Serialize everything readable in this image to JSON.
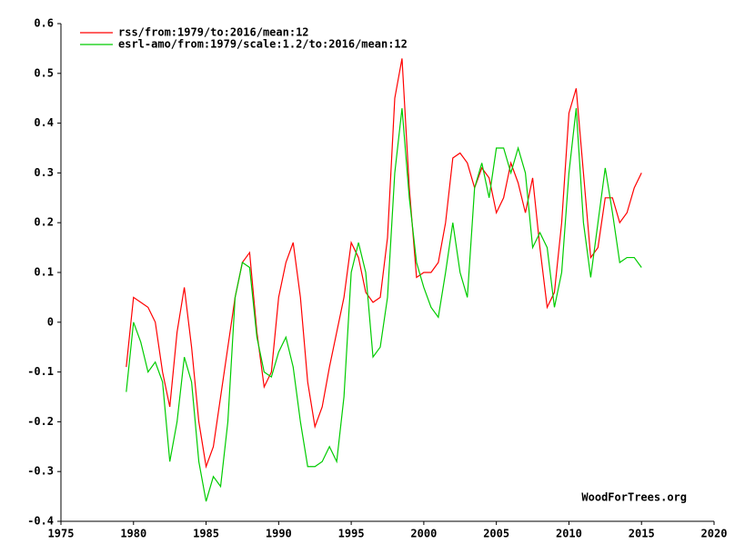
{
  "chart_data": {
    "type": "line",
    "x": [
      1979.5,
      1980,
      1980.5,
      1981,
      1981.5,
      1982,
      1982.5,
      1983,
      1983.5,
      1984,
      1984.5,
      1985,
      1985.5,
      1986,
      1986.5,
      1987,
      1987.5,
      1988,
      1988.5,
      1989,
      1989.5,
      1990,
      1990.5,
      1991,
      1991.5,
      1992,
      1992.5,
      1993,
      1993.5,
      1994,
      1994.5,
      1995,
      1995.5,
      1996,
      1996.5,
      1997,
      1997.5,
      1998,
      1998.5,
      1999,
      1999.5,
      2000,
      2000.5,
      2001,
      2001.5,
      2002,
      2002.5,
      2003,
      2003.5,
      2004,
      2004.5,
      2005,
      2005.5,
      2006,
      2006.5,
      2007,
      2007.5,
      2008,
      2008.5,
      2009,
      2009.5,
      2010,
      2010.5,
      2011,
      2011.5,
      2012,
      2012.5,
      2013,
      2013.5,
      2014,
      2014.5,
      2015
    ],
    "series": [
      {
        "name": "rss/from:1979/to:2016/mean:12",
        "color": "#ff0000",
        "values": [
          -0.09,
          0.05,
          0.04,
          0.03,
          0.0,
          -0.1,
          -0.17,
          -0.02,
          0.07,
          -0.05,
          -0.2,
          -0.29,
          -0.25,
          -0.15,
          -0.05,
          0.05,
          0.12,
          0.14,
          -0.02,
          -0.13,
          -0.1,
          0.05,
          0.12,
          0.16,
          0.05,
          -0.12,
          -0.21,
          -0.17,
          -0.09,
          -0.02,
          0.05,
          0.16,
          0.13,
          0.06,
          0.04,
          0.05,
          0.17,
          0.45,
          0.53,
          0.27,
          0.09,
          0.1,
          0.1,
          0.12,
          0.2,
          0.33,
          0.34,
          0.32,
          0.27,
          0.31,
          0.29,
          0.22,
          0.25,
          0.32,
          0.28,
          0.22,
          0.29,
          0.15,
          0.03,
          0.06,
          0.2,
          0.42,
          0.47,
          0.3,
          0.13,
          0.15,
          0.25,
          0.25,
          0.2,
          0.22,
          0.27,
          0.3
        ]
      },
      {
        "name": "esrl-amo/from:1979/scale:1.2/to:2016/mean:12",
        "color": "#00cc00",
        "values": [
          -0.14,
          0.0,
          -0.04,
          -0.1,
          -0.08,
          -0.12,
          -0.28,
          -0.2,
          -0.07,
          -0.12,
          -0.28,
          -0.36,
          -0.31,
          -0.33,
          -0.2,
          0.05,
          0.12,
          0.11,
          -0.03,
          -0.1,
          -0.11,
          -0.06,
          -0.03,
          -0.09,
          -0.2,
          -0.29,
          -0.29,
          -0.28,
          -0.25,
          -0.28,
          -0.15,
          0.1,
          0.16,
          0.1,
          -0.07,
          -0.05,
          0.05,
          0.3,
          0.43,
          0.25,
          0.12,
          0.07,
          0.03,
          0.01,
          0.1,
          0.2,
          0.1,
          0.05,
          0.27,
          0.32,
          0.25,
          0.35,
          0.35,
          0.3,
          0.35,
          0.3,
          0.15,
          0.18,
          0.15,
          0.03,
          0.1,
          0.3,
          0.43,
          0.2,
          0.09,
          0.2,
          0.31,
          0.22,
          0.12,
          0.13,
          0.13,
          0.11
        ]
      }
    ],
    "xlim": [
      1975,
      2020
    ],
    "xticks": [
      1975,
      1980,
      1985,
      1990,
      1995,
      2000,
      2005,
      2010,
      2015,
      2020
    ],
    "ylim": [
      -0.4,
      0.6
    ],
    "yticks": [
      -0.4,
      -0.3,
      -0.2,
      -0.1,
      0,
      0.1,
      0.2,
      0.3,
      0.4,
      0.5,
      0.6
    ],
    "legend": "upper left",
    "annotation": "WoodForTrees.org"
  }
}
